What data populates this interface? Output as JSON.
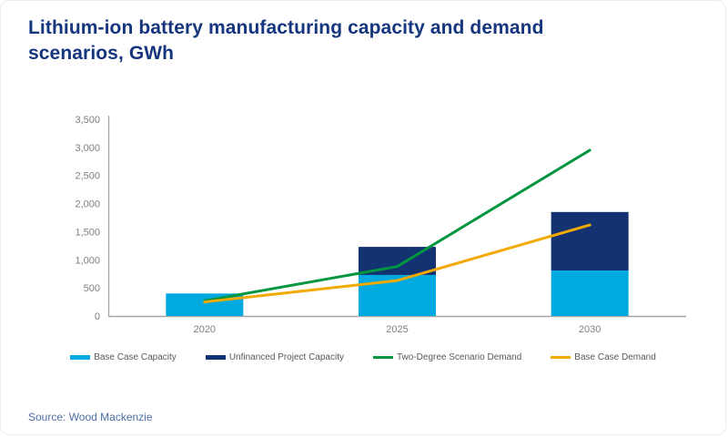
{
  "header": {
    "title": "Lithium-ion battery manufacturing capacity and demand scenarios, GWh"
  },
  "footer": {
    "source": "Source: Wood Mackenzie"
  },
  "colors": {
    "title": "#15357D",
    "axis_line": "#A6A6A6",
    "tick_label": "#7F7F7F",
    "legend_text": "#595959",
    "source_text": "#4C6FA5",
    "base_case_capacity": "#00A9E0",
    "unfinanced_project_capacity": "#133271",
    "two_degree_scenario_demand": "#009640",
    "base_case_demand": "#F2A900"
  },
  "chart_data": {
    "type": "combo",
    "title": "Lithium-ion battery manufacturing capacity and demand scenarios, GWh",
    "units": "GWh",
    "categories": [
      "2020",
      "2025",
      "2030"
    ],
    "series": [
      {
        "name": "Base Case Capacity",
        "render": "stacked-bar",
        "color": "#00A9E0",
        "values": [
          400,
          730,
          810
        ]
      },
      {
        "name": "Unfinanced Project Capacity",
        "render": "stacked-bar",
        "color": "#133271",
        "values": [
          0,
          500,
          1040
        ]
      },
      {
        "name": "Two-Degree Scenario Demand",
        "render": "line",
        "color": "#009640",
        "values": [
          270,
          880,
          2950
        ]
      },
      {
        "name": "Base Case Demand",
        "render": "line",
        "color": "#F2A900",
        "values": [
          250,
          630,
          1620
        ]
      }
    ],
    "xlabel": "",
    "ylabel": "",
    "ylim": [
      0,
      3500
    ],
    "yticks": {
      "values": [
        0,
        500,
        1000,
        1500,
        2000,
        2500,
        3000,
        3500
      ],
      "labels": [
        "0",
        "500",
        "1,000",
        "1,500",
        "2,000",
        "2,500",
        "3,000",
        "3,500"
      ]
    },
    "grid": false,
    "legend_position": "bottom"
  }
}
